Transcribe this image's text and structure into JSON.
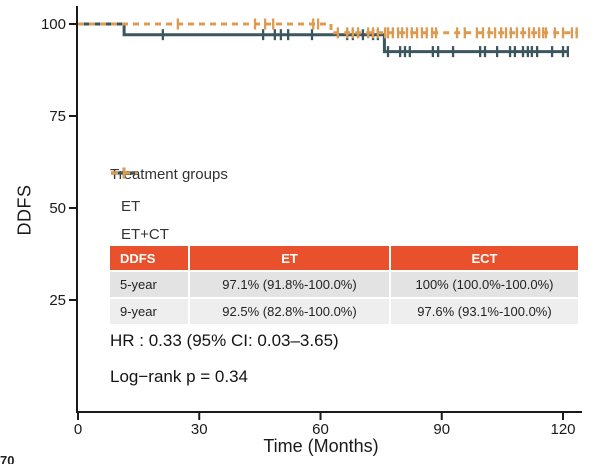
{
  "chart_data": {
    "type": "line",
    "subtype": "kaplan-meier-step",
    "xlabel": "Time (Months)",
    "ylabel": "DDFS",
    "x_ticks": [
      0,
      30,
      60,
      90,
      120
    ],
    "y_ticks": [
      100,
      75,
      50,
      25
    ],
    "xlim": [
      0,
      124
    ],
    "ylim": [
      0,
      105
    ],
    "grid": false,
    "axis_color": "#1a1a1a",
    "series": [
      {
        "name": "ET",
        "color": "#3b565e",
        "dash": false,
        "steps": [
          [
            0,
            100
          ],
          [
            11.4,
            100
          ],
          [
            11.4,
            97.1
          ],
          [
            75.8,
            97.1
          ],
          [
            75.8,
            92.5
          ],
          [
            121.3,
            92.5
          ]
        ],
        "censors": [
          {
            "level": 97.1,
            "months": [
              21,
              45.8,
              48.7,
              50.2,
              52,
              57.9,
              66.6,
              68,
              70.5,
              73,
              74.2
            ]
          },
          {
            "level": 92.5,
            "months": [
              76.7,
              79.7,
              80.9,
              82.1,
              87.8,
              89.1,
              92.8,
              99.5,
              100.7,
              103.7,
              106.9,
              108.1,
              110.1,
              111.3,
              112.3,
              113.6,
              117.3,
              120,
              121.2
            ]
          }
        ]
      },
      {
        "name": "ET+CT",
        "color": "#dc9b50",
        "dash": true,
        "steps": [
          [
            0,
            100
          ],
          [
            62.6,
            100
          ],
          [
            62.6,
            97.6
          ],
          [
            123.5,
            97.6
          ]
        ],
        "censors": [
          {
            "level": 100,
            "months": [
              24.7,
              43.8,
              46.3,
              48.3,
              58.2,
              59.4
            ]
          },
          {
            "level": 97.6,
            "months": [
              64.3,
              66.6,
              68,
              69.3,
              71.8,
              73,
              74.2,
              76,
              76.7,
              77.9,
              79.2,
              80.2,
              81.4,
              82.6,
              83.9,
              85.1,
              86.3,
              87.6,
              88.6,
              93.8,
              95.7,
              98.7,
              100.2,
              101.7,
              103.2,
              104.7,
              105.9,
              107.1,
              108.6,
              110.1,
              111.6,
              112.8,
              114.1,
              115.1,
              115.8,
              118,
              120,
              122.2,
              123.4
            ]
          }
        ]
      }
    ],
    "legend": {
      "title": "Treatment groups",
      "items": [
        {
          "label": "ET"
        },
        {
          "label": "ET+CT"
        }
      ]
    },
    "inset_table": {
      "header_bg": "#e8512b",
      "header": [
        "DDFS",
        "ET",
        "ECT"
      ],
      "rows": [
        [
          "5-year",
          "97.1% (91.8%-100.0%)",
          "100% (100.0%-100.0%)"
        ],
        [
          "9-year",
          "92.5% (82.8%-100.0%)",
          "97.6% (93.1%-100.0%)"
        ]
      ]
    },
    "annotations": {
      "hr": "HR : 0.33 (95% CI: 0.03–3.65)",
      "logrank": "Log−rank  p = 0.34"
    }
  },
  "corner_fragment": "70"
}
